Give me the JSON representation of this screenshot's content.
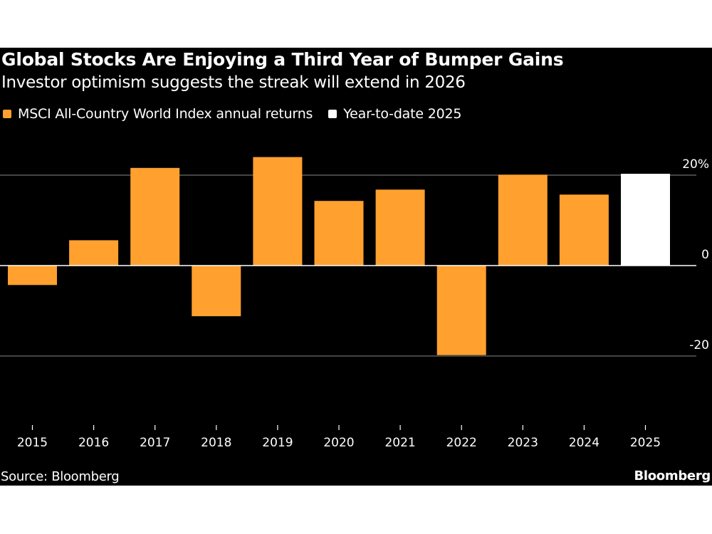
{
  "header": {
    "title": "Global Stocks Are Enjoying a Third Year of Bumper Gains",
    "subtitle": "Investor optimism suggests the streak will extend in 2026"
  },
  "legend": [
    {
      "label": "MSCI All-Country World Index annual returns",
      "color": "#FFA02F"
    },
    {
      "label": "Year-to-date 2025",
      "color": "#FFFFFF"
    }
  ],
  "footer": {
    "source": "Source: Bloomberg",
    "brand": "Bloomberg"
  },
  "colors": {
    "background": "#000000",
    "annual": "#FFA02F",
    "ytd": "#FFFFFF",
    "gridline": "#6e6e6e",
    "zeroline": "#ffffff"
  },
  "chart_data": {
    "type": "bar",
    "title": "Global Stocks Are Enjoying a Third Year of Bumper Gains",
    "subtitle": "Investor optimism suggests the streak will extend in 2026",
    "xlabel": "",
    "ylabel": "",
    "categories": [
      "2015",
      "2016",
      "2017",
      "2018",
      "2019",
      "2020",
      "2021",
      "2022",
      "2023",
      "2024",
      "2025"
    ],
    "series": [
      {
        "name": "MSCI All-Country World Index annual returns",
        "color": "#FFA02F",
        "values": [
          -4.3,
          5.6,
          21.6,
          -11.2,
          24.0,
          14.3,
          16.8,
          -19.8,
          20.1,
          15.7,
          null
        ]
      },
      {
        "name": "Year-to-date 2025",
        "color": "#FFFFFF",
        "values": [
          null,
          null,
          null,
          null,
          null,
          null,
          null,
          null,
          null,
          null,
          20.3
        ]
      }
    ],
    "ylim": [
      -33,
      37
    ],
    "yticks": [
      {
        "value": 20,
        "label": "20%"
      },
      {
        "value": 0,
        "label": "0"
      },
      {
        "value": -20,
        "label": "-20"
      }
    ],
    "y_axis_side": "right",
    "grid": true,
    "legend_position": "top-left",
    "source": "Source: Bloomberg"
  }
}
